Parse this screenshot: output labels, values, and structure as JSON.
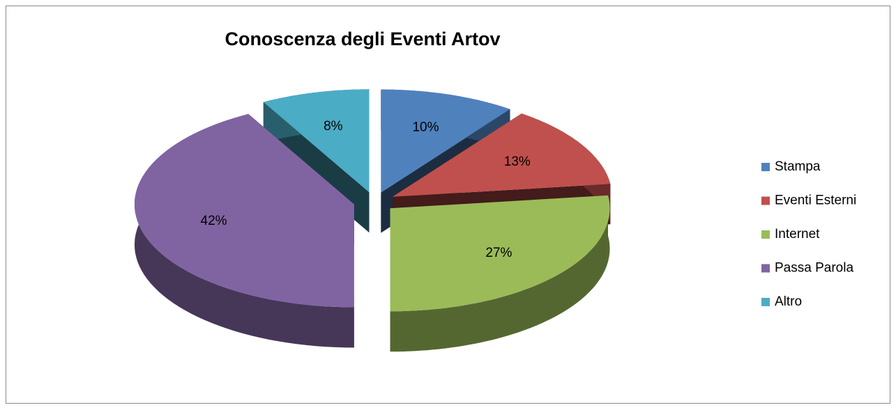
{
  "chart_data": {
    "type": "pie",
    "title": "Conoscenza degli Eventi Artov",
    "categories": [
      "Stampa",
      "Eventi Esterni",
      "Internet",
      "Passa Parola",
      "Altro"
    ],
    "values": [
      10,
      13,
      27,
      42,
      8
    ],
    "value_labels": [
      "10%",
      "13%",
      "27%",
      "42%",
      "8%"
    ],
    "colors": [
      "#4f81bd",
      "#c0504d",
      "#9bbb59",
      "#8064a2",
      "#4bacc6"
    ],
    "legend": "right"
  }
}
